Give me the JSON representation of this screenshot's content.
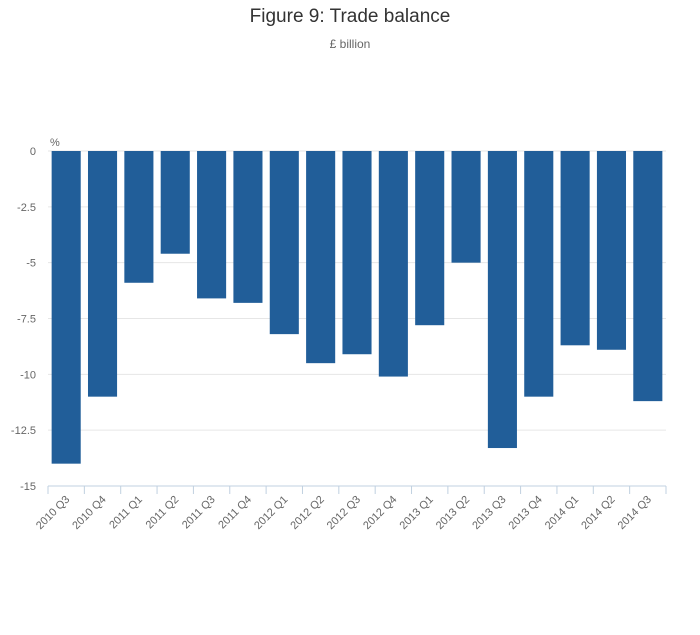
{
  "chart_data": {
    "type": "bar",
    "title": "Figure 9: Trade balance",
    "subtitle": "£ billion",
    "y_unit_label": "%",
    "xlabel": "",
    "ylabel": "",
    "ylim": [
      -15,
      0
    ],
    "y_ticks": [
      0,
      -2.5,
      -5,
      -7.5,
      -10,
      -12.5,
      -15
    ],
    "y_tick_labels": [
      "0",
      "-2.5",
      "-5",
      "-7.5",
      "-10",
      "-12.5",
      "-15"
    ],
    "grid": true,
    "legend": "none",
    "bar_color": "#215e99",
    "categories": [
      "2010 Q3",
      "2010 Q4",
      "2011 Q1",
      "2011 Q2",
      "2011 Q3",
      "2011 Q4",
      "2012 Q1",
      "2012 Q2",
      "2012 Q3",
      "2012 Q4",
      "2013 Q1",
      "2013 Q2",
      "2013 Q3",
      "2013 Q4",
      "2014 Q1",
      "2014 Q2",
      "2014 Q3"
    ],
    "values": [
      -14.0,
      -11.0,
      -5.9,
      -4.6,
      -6.6,
      -6.8,
      -8.2,
      -9.5,
      -9.1,
      -10.1,
      -7.8,
      -5.0,
      -13.3,
      -11.0,
      -8.7,
      -8.9,
      -11.2
    ]
  }
}
